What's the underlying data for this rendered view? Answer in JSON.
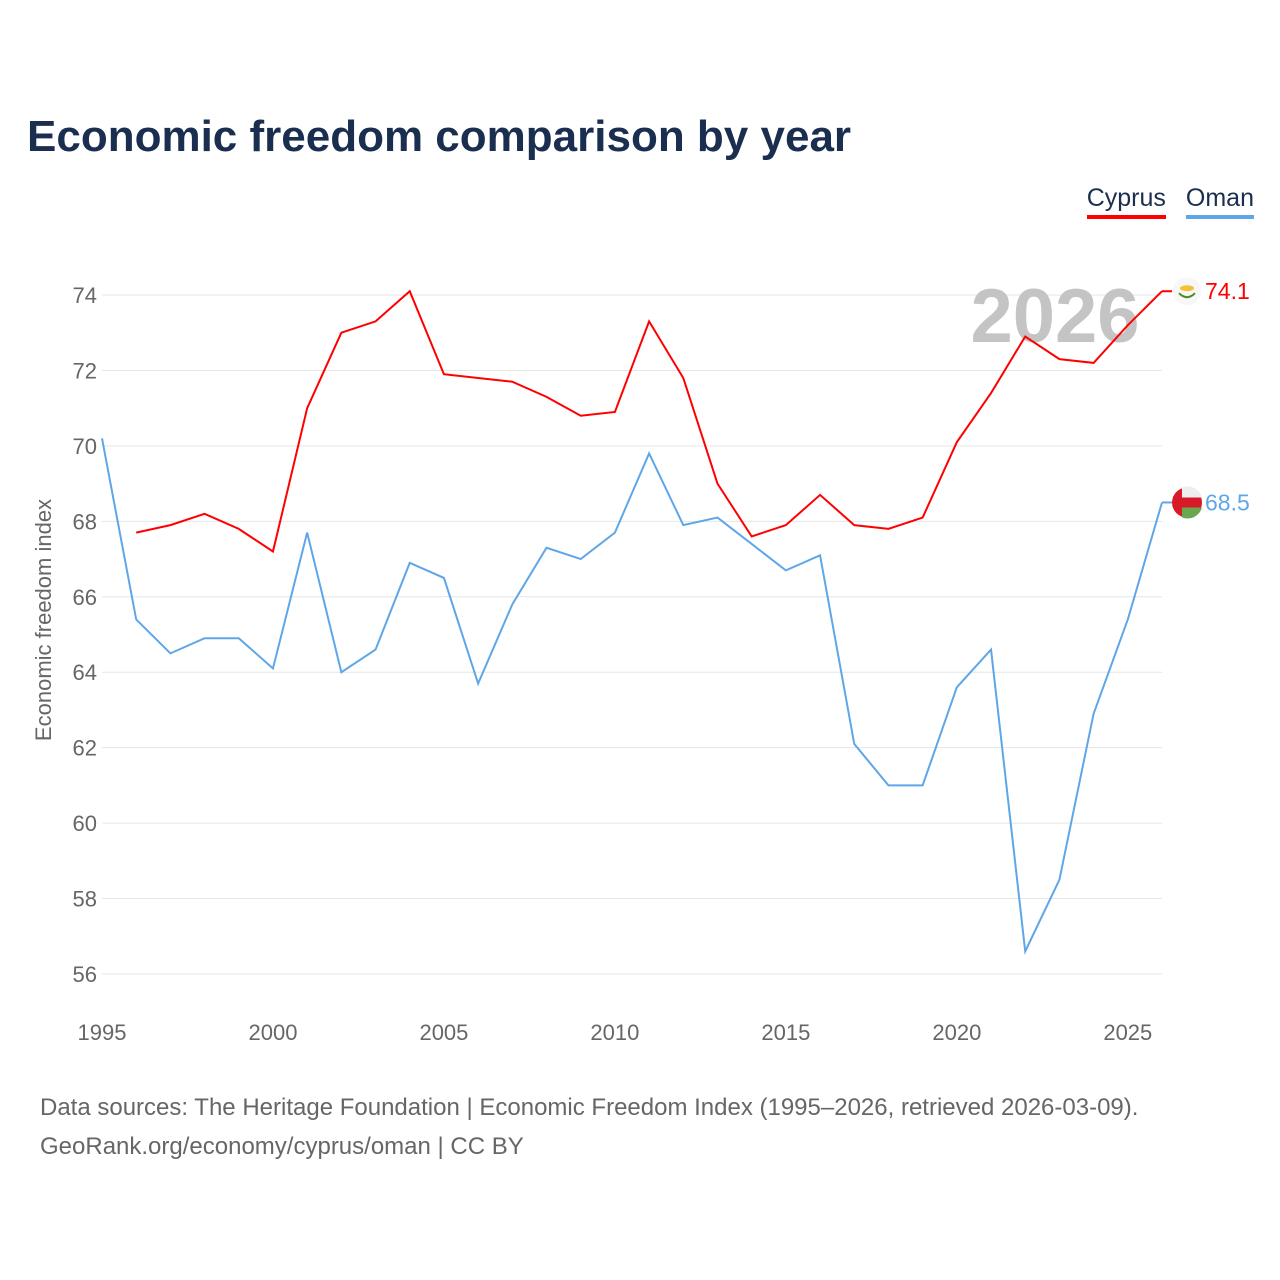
{
  "title": "Economic freedom comparison by year",
  "legend": [
    {
      "name": "Cyprus",
      "color": "#ff0000"
    },
    {
      "name": "Oman",
      "color": "#5fa6e8"
    }
  ],
  "watermark": "2026",
  "footer": {
    "line1": "Data sources: The Heritage Foundation | Economic Freedom Index (1995–2026, retrieved 2026-03-09).",
    "line2": "GeoRank.org/economy/cyprus/oman | CC BY"
  },
  "chart_data": {
    "type": "line",
    "title": "Economic freedom comparison by year",
    "xlabel": "",
    "ylabel": "Economic freedom index",
    "xlim": [
      1995,
      2026
    ],
    "ylim": [
      55.5,
      75
    ],
    "xticks": [
      1995,
      2000,
      2005,
      2010,
      2015,
      2020,
      2025
    ],
    "yticks": [
      56,
      58,
      60,
      62,
      64,
      66,
      68,
      70,
      72,
      74
    ],
    "series": [
      {
        "name": "Cyprus",
        "color": "#ff0000",
        "end_label": "74.1",
        "flag": "cyprus-flag",
        "x": [
          1996,
          1997,
          1998,
          1999,
          2000,
          2001,
          2002,
          2003,
          2004,
          2005,
          2006,
          2007,
          2008,
          2009,
          2010,
          2011,
          2012,
          2013,
          2014,
          2015,
          2016,
          2017,
          2018,
          2019,
          2020,
          2021,
          2022,
          2023,
          2024,
          2025,
          2026
        ],
        "values": [
          67.7,
          67.9,
          68.2,
          67.8,
          67.2,
          71.0,
          73.0,
          73.3,
          74.1,
          71.9,
          71.8,
          71.7,
          71.3,
          70.8,
          70.9,
          73.3,
          71.8,
          69.0,
          67.6,
          67.9,
          68.7,
          67.9,
          67.8,
          68.1,
          70.1,
          71.4,
          72.9,
          72.3,
          72.2,
          73.2,
          74.1
        ]
      },
      {
        "name": "Oman",
        "color": "#5fa6e8",
        "end_label": "68.5",
        "flag": "oman-flag",
        "x": [
          1995,
          1996,
          1997,
          1998,
          1999,
          2000,
          2001,
          2002,
          2003,
          2004,
          2005,
          2006,
          2007,
          2008,
          2009,
          2010,
          2011,
          2012,
          2013,
          2014,
          2015,
          2016,
          2017,
          2018,
          2019,
          2020,
          2021,
          2022,
          2023,
          2024,
          2025,
          2026
        ],
        "values": [
          70.2,
          65.4,
          64.5,
          64.9,
          64.9,
          64.1,
          67.7,
          64.0,
          64.6,
          66.9,
          66.5,
          63.7,
          65.8,
          67.3,
          67.0,
          67.7,
          69.8,
          67.9,
          68.1,
          67.4,
          66.7,
          67.1,
          62.1,
          61.0,
          61.0,
          63.6,
          64.6,
          56.6,
          58.5,
          62.9,
          65.4,
          68.5
        ]
      }
    ]
  }
}
